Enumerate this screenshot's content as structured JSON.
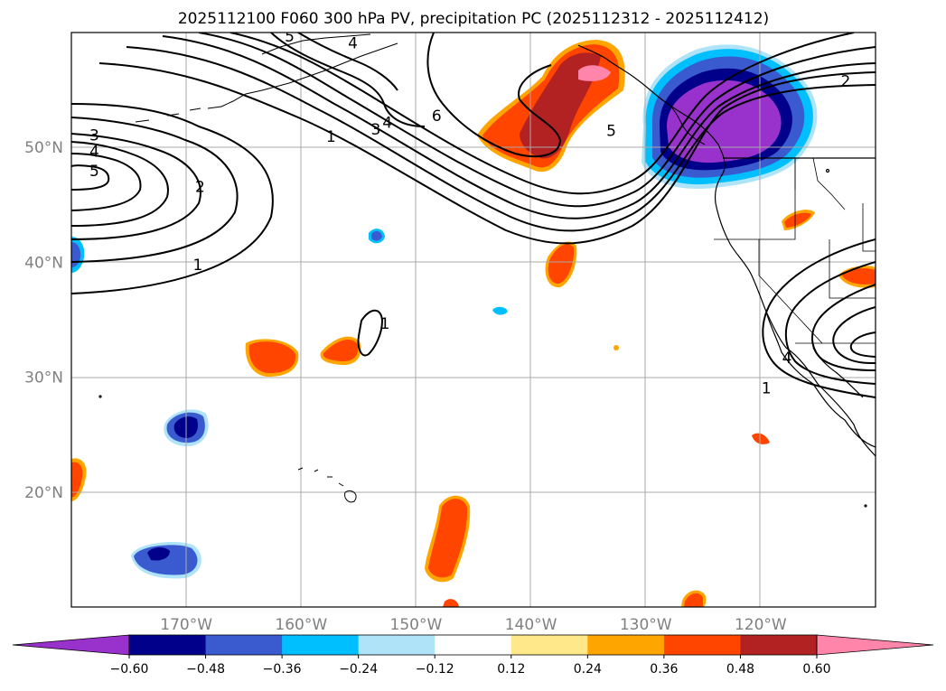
{
  "chart_data": {
    "type": "map-contour",
    "title": "2025112100 F060 300 hPa PV, precipitation PC (2025112312 - 2025112412)",
    "colors": {
      "colorbar": [
        "#9932cc",
        "#00008b",
        "#3a5bd0",
        "#00bfff",
        "#aee3f8",
        "#ffffff",
        "#ffe88a",
        "#ffa500",
        "#ff4500",
        "#b22222",
        "#ff85aa"
      ]
    },
    "lon_range": [
      -180,
      -110
    ],
    "lat_range": [
      10,
      60
    ],
    "lon_ticks": [
      {
        "value": -170,
        "label": "170°W"
      },
      {
        "value": -160,
        "label": "160°W"
      },
      {
        "value": -150,
        "label": "150°W"
      },
      {
        "value": -140,
        "label": "140°W"
      },
      {
        "value": -130,
        "label": "130°W"
      },
      {
        "value": -120,
        "label": "120°W"
      }
    ],
    "lat_ticks": [
      {
        "value": 20,
        "label": "20°N"
      },
      {
        "value": 30,
        "label": "30°N"
      },
      {
        "value": 40,
        "label": "40°N"
      },
      {
        "value": 50,
        "label": "50°N"
      }
    ],
    "colorbar_levels": [
      -0.6,
      -0.48,
      -0.36,
      -0.24,
      -0.12,
      0.12,
      0.24,
      0.36,
      0.48,
      0.6
    ],
    "colorbar_labels": [
      "−0.60",
      "−0.48",
      "−0.36",
      "−0.24",
      "−0.12",
      "0.12",
      "0.24",
      "0.36",
      "0.48",
      "0.60"
    ],
    "pv_contour_labels": [
      {
        "text": "1",
        "lon": -157.4,
        "lat": 50.9
      },
      {
        "text": "3",
        "lon": -153.5,
        "lat": 51.5
      },
      {
        "text": "4",
        "lon": -152.5,
        "lat": 52.1
      },
      {
        "text": "6",
        "lon": -148.2,
        "lat": 52.7
      },
      {
        "text": "5",
        "lon": -133.0,
        "lat": 51.4
      },
      {
        "text": "2",
        "lon": -112.6,
        "lat": 55.7
      },
      {
        "text": "5",
        "lon": -161.0,
        "lat": 59.6
      },
      {
        "text": "4",
        "lon": -155.5,
        "lat": 59.0
      },
      {
        "text": "3",
        "lon": -178.0,
        "lat": 51.0
      },
      {
        "text": "4",
        "lon": -178.0,
        "lat": 49.6
      },
      {
        "text": "5",
        "lon": -178.0,
        "lat": 47.9
      },
      {
        "text": "2",
        "lon": -168.8,
        "lat": 46.5
      },
      {
        "text": "1",
        "lon": -169.0,
        "lat": 39.7
      },
      {
        "text": "1",
        "lon": -152.7,
        "lat": 34.6
      },
      {
        "text": "4",
        "lon": -117.7,
        "lat": 31.6
      },
      {
        "text": "1",
        "lon": -119.5,
        "lat": 29.0
      }
    ]
  }
}
